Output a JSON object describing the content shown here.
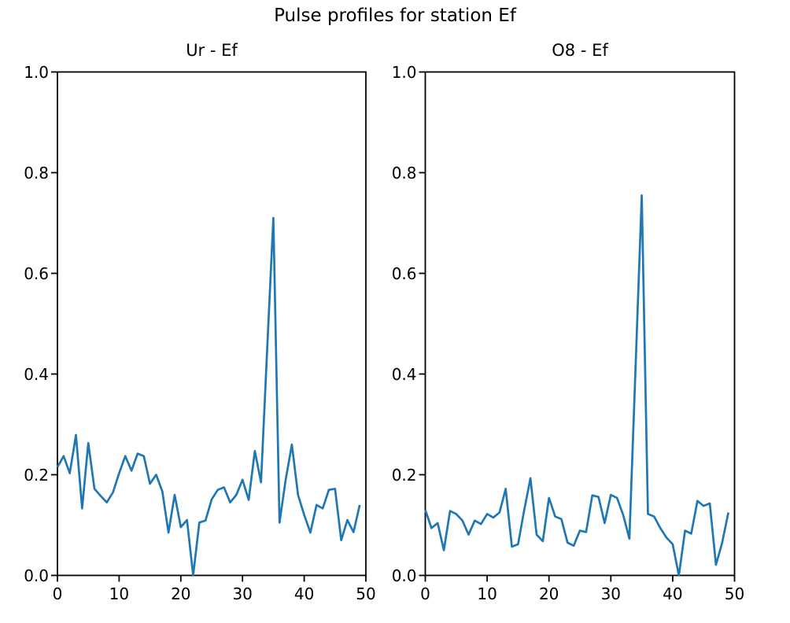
{
  "figure": {
    "title": "Pulse profiles for station Ef",
    "background_color": "#ffffff",
    "line_color": "#1f77b4",
    "axis_color": "#000000"
  },
  "chart_data": [
    {
      "type": "line",
      "title": "Ur - Ef",
      "xlabel": "",
      "ylabel": "",
      "xlim": [
        0,
        50
      ],
      "ylim": [
        0.0,
        1.0
      ],
      "grid": false,
      "legend": false,
      "xticks": [
        0,
        10,
        20,
        30,
        40,
        50
      ],
      "yticks": [
        0.0,
        0.2,
        0.4,
        0.6,
        0.8,
        1.0
      ],
      "ytick_labels": [
        "0.0",
        "0.2",
        "0.4",
        "0.6",
        "0.8",
        "1.0"
      ],
      "x": [
        0,
        1,
        2,
        3,
        4,
        5,
        6,
        7,
        8,
        9,
        10,
        11,
        12,
        13,
        14,
        15,
        16,
        17,
        18,
        19,
        20,
        21,
        22,
        23,
        24,
        25,
        26,
        27,
        28,
        29,
        30,
        31,
        32,
        33,
        34,
        35,
        36,
        37,
        38,
        39,
        40,
        41,
        42,
        43,
        44,
        45,
        46,
        47,
        48,
        49
      ],
      "y": [
        0.215,
        0.237,
        0.203,
        0.279,
        0.133,
        0.263,
        0.172,
        0.158,
        0.145,
        0.165,
        0.203,
        0.237,
        0.208,
        0.242,
        0.237,
        0.182,
        0.2,
        0.167,
        0.085,
        0.16,
        0.096,
        0.11,
        0.0,
        0.105,
        0.109,
        0.151,
        0.17,
        0.175,
        0.145,
        0.16,
        0.19,
        0.15,
        0.247,
        0.185,
        0.45,
        0.71,
        0.105,
        0.19,
        0.26,
        0.16,
        0.12,
        0.085,
        0.14,
        0.133,
        0.17,
        0.172,
        0.07,
        0.11,
        0.086,
        0.14
      ]
    },
    {
      "type": "line",
      "title": "O8 - Ef",
      "xlabel": "",
      "ylabel": "",
      "xlim": [
        0,
        50
      ],
      "ylim": [
        0.0,
        1.0
      ],
      "grid": false,
      "legend": false,
      "xticks": [
        0,
        10,
        20,
        30,
        40,
        50
      ],
      "yticks": [
        0.0,
        0.2,
        0.4,
        0.6,
        0.8,
        1.0
      ],
      "ytick_labels": [
        "0.0",
        "0.2",
        "0.4",
        "0.6",
        "0.8",
        "1.0"
      ],
      "x": [
        0,
        1,
        2,
        3,
        4,
        5,
        6,
        7,
        8,
        9,
        10,
        11,
        12,
        13,
        14,
        15,
        16,
        17,
        18,
        19,
        20,
        21,
        22,
        23,
        24,
        25,
        26,
        27,
        28,
        29,
        30,
        31,
        32,
        33,
        34,
        35,
        36,
        37,
        38,
        39,
        40,
        41,
        42,
        43,
        44,
        45,
        46,
        47,
        48,
        49
      ],
      "y": [
        0.13,
        0.094,
        0.104,
        0.05,
        0.128,
        0.122,
        0.109,
        0.081,
        0.109,
        0.102,
        0.122,
        0.115,
        0.125,
        0.172,
        0.057,
        0.062,
        0.13,
        0.193,
        0.081,
        0.068,
        0.154,
        0.117,
        0.112,
        0.065,
        0.059,
        0.089,
        0.086,
        0.159,
        0.156,
        0.104,
        0.16,
        0.154,
        0.12,
        0.073,
        0.414,
        0.755,
        0.122,
        0.117,
        0.094,
        0.075,
        0.062,
        0.0,
        0.089,
        0.083,
        0.148,
        0.138,
        0.143,
        0.021,
        0.065,
        0.125
      ]
    }
  ]
}
